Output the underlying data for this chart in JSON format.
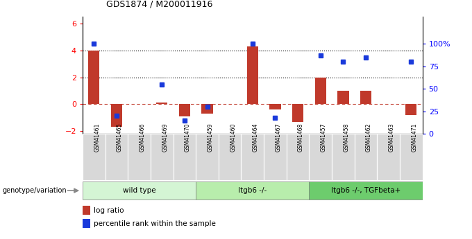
{
  "title": "GDS1874 / M200011916",
  "samples": [
    "GSM41461",
    "GSM41465",
    "GSM41466",
    "GSM41469",
    "GSM41470",
    "GSM41459",
    "GSM41460",
    "GSM41464",
    "GSM41467",
    "GSM41468",
    "GSM41457",
    "GSM41458",
    "GSM41462",
    "GSM41463",
    "GSM41471"
  ],
  "log_ratio": [
    4.0,
    -1.7,
    0.0,
    0.15,
    -0.9,
    -0.7,
    0.0,
    4.3,
    -0.4,
    -1.3,
    2.0,
    1.0,
    1.0,
    0.0,
    -0.8
  ],
  "percentile_rank": [
    100,
    20,
    null,
    55,
    15,
    30,
    null,
    100,
    18,
    null,
    87,
    80,
    85,
    null,
    80
  ],
  "groups": [
    {
      "label": "wild type",
      "start": 0,
      "end": 5
    },
    {
      "label": "Itgb6 -/-",
      "start": 5,
      "end": 10
    },
    {
      "label": "Itgb6 -/-, TGFbeta+",
      "start": 10,
      "end": 15
    }
  ],
  "group_colors": [
    "#d4f5d4",
    "#b8edac",
    "#6dcc6d"
  ],
  "bar_color": "#c0392b",
  "dot_color": "#1a3adb",
  "ylim_left": [
    -2.2,
    6.5
  ],
  "ylim_right": [
    0,
    130
  ],
  "yticks_left": [
    -2,
    0,
    2,
    4,
    6
  ],
  "yticks_right": [
    0,
    25,
    50,
    75,
    100
  ],
  "yticklabels_right": [
    "0",
    "25",
    "50",
    "75",
    "100%"
  ],
  "background_color": "#ffffff",
  "genotype_label": "genotype/variation"
}
